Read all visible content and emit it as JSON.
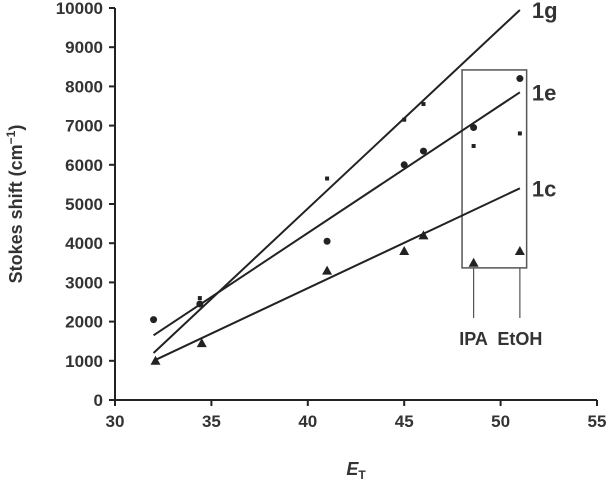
{
  "chart_data": {
    "type": "scatter",
    "xlabel": "E",
    "xlabel_sub": "T",
    "ylabel": "Stokes shift (cm",
    "ylabel_sup": "−1",
    "ylabel_close": ")",
    "xlim": [
      30,
      55
    ],
    "ylim": [
      0,
      10000
    ],
    "xticks": [
      30,
      35,
      40,
      45,
      50,
      55
    ],
    "yticks": [
      0,
      1000,
      2000,
      3000,
      4000,
      5000,
      6000,
      7000,
      8000,
      9000,
      10000
    ],
    "grid": false,
    "series": [
      {
        "name": "1g",
        "marker": "square",
        "x": [
          34.4,
          41,
          45,
          46,
          48.6,
          51
        ],
        "y": [
          2600,
          5650,
          7150,
          7550,
          6480,
          6800
        ],
        "fit": [
          [
            32,
            1200
          ],
          [
            51,
            9950
          ]
        ]
      },
      {
        "name": "1e",
        "marker": "circle",
        "x": [
          32,
          34.4,
          41,
          45,
          46,
          48.6,
          51
        ],
        "y": [
          2050,
          2450,
          4050,
          6000,
          6350,
          6950,
          8200
        ],
        "fit": [
          [
            32,
            1650
          ],
          [
            51,
            7850
          ]
        ]
      },
      {
        "name": "1c",
        "marker": "triangle",
        "x": [
          32.1,
          34.5,
          41,
          45,
          46,
          48.6,
          51
        ],
        "y": [
          1000,
          1450,
          3300,
          3800,
          4200,
          3500,
          3800
        ],
        "fit": [
          [
            32,
            1000
          ],
          [
            51,
            5400
          ]
        ]
      }
    ],
    "annotations": [
      {
        "text": "IPA",
        "x": 48.6
      },
      {
        "text": "EtOH",
        "x": 51
      }
    ],
    "highlight_box": {
      "x": [
        48,
        51.35
      ],
      "y": [
        3370,
        8420
      ]
    },
    "color": "#222222"
  }
}
